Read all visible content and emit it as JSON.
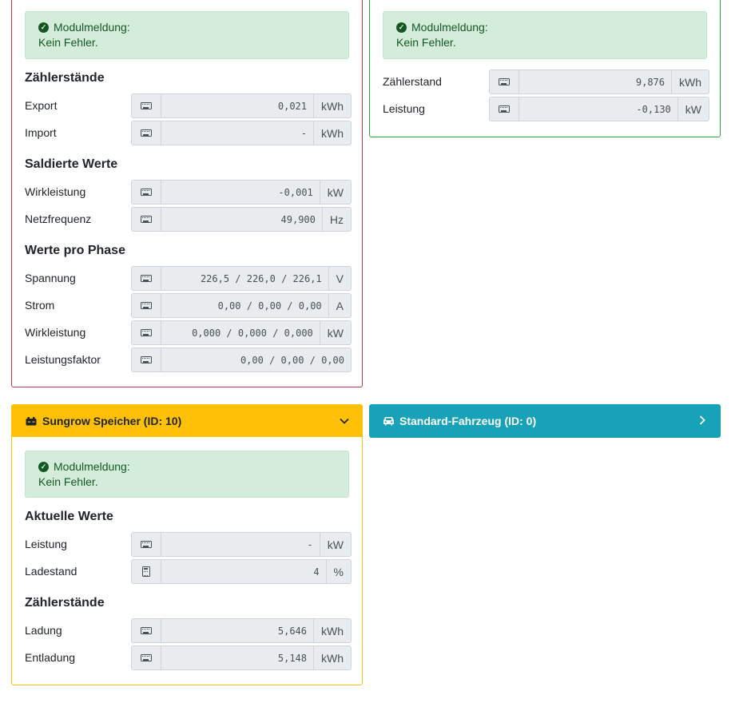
{
  "alert": {
    "title": "Modulmeldung:",
    "message": "Kein Fehler."
  },
  "counter_card": {
    "sections": {
      "meters": "Zählerstände",
      "balanced": "Saldierte Werte",
      "per_phase": "Werte pro Phase"
    },
    "fields": {
      "export": {
        "label": "Export",
        "value": "0,021",
        "unit": "kWh"
      },
      "import": {
        "label": "Import",
        "value": "-",
        "unit": "kWh"
      },
      "active_power": {
        "label": "Wirkleistung",
        "value": "-0,001",
        "unit": "kW"
      },
      "frequency": {
        "label": "Netzfrequenz",
        "value": "49,900",
        "unit": "Hz"
      },
      "voltage": {
        "label": "Spannung",
        "value": "226,5 / 226,0 / 226,1",
        "unit": "V"
      },
      "current": {
        "label": "Strom",
        "value": "0,00 / 0,00 / 0,00",
        "unit": "A"
      },
      "phase_power": {
        "label": "Wirkleistung",
        "value": "0,000 / 0,000 / 0,000",
        "unit": "kW"
      },
      "power_factor": {
        "label": "Leistungsfaktor",
        "value": "0,00 / 0,00 / 0,00",
        "unit": ""
      }
    }
  },
  "inverter_card": {
    "fields": {
      "meter": {
        "label": "Zählerstand",
        "value": "9,876",
        "unit": "kWh"
      },
      "power": {
        "label": "Leistung",
        "value": "-0,130",
        "unit": "kW"
      }
    }
  },
  "battery_card": {
    "header": "Sungrow Speicher (ID: 10)",
    "sections": {
      "current": "Aktuelle Werte",
      "meters": "Zählerstände"
    },
    "fields": {
      "power": {
        "label": "Leistung",
        "value": "-",
        "unit": "kW"
      },
      "soc": {
        "label": "Ladestand",
        "value": "4",
        "unit": "%"
      },
      "charge": {
        "label": "Ladung",
        "value": "5,646",
        "unit": "kWh"
      },
      "discharge": {
        "label": "Entladung",
        "value": "5,148",
        "unit": "kWh"
      }
    }
  },
  "vehicle_card": {
    "header": "Standard-Fahrzeug (ID: 0)"
  },
  "colors": {
    "counter_border": "#c0394b",
    "inverter_border": "#28a745",
    "battery_accent": "#ffc107",
    "vehicle_accent": "#17a2b8",
    "success_bg": "#d4edda"
  },
  "icons": {
    "status": "check-circle-icon",
    "input": "keyboard-icon",
    "soc": "calculator-icon",
    "battery": "battery-icon",
    "vehicle": "car-icon",
    "collapse": "chevron-down-icon",
    "expand": "chevron-right-icon"
  }
}
